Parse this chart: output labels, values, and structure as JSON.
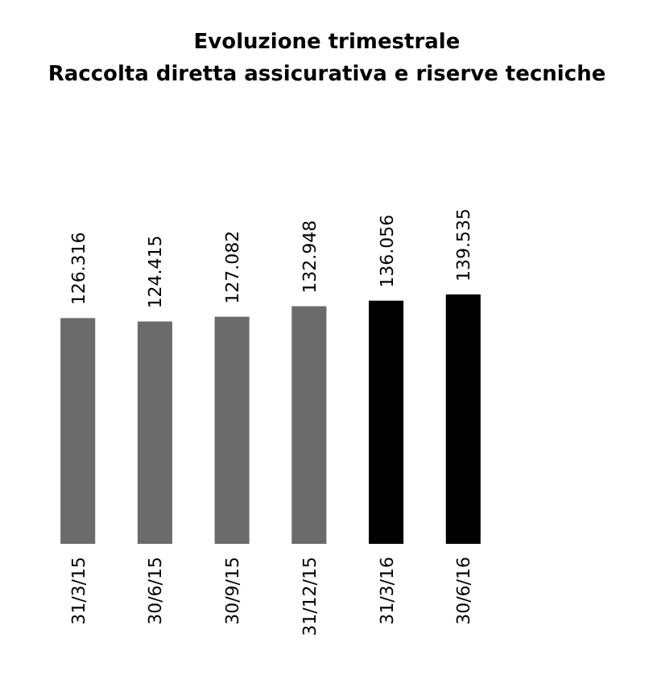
{
  "chart_data": {
    "type": "bar",
    "title": "Evoluzione trimestrale",
    "subtitle": "Raccolta diretta assicurativa e riserve tecniche",
    "categories": [
      "31/3/15",
      "30/6/15",
      "30/9/15",
      "31/12/15",
      "31/3/16",
      "30/6/16"
    ],
    "values": [
      126316,
      124415,
      127082,
      132948,
      136056,
      139535
    ],
    "value_labels": [
      "126.316",
      "124.415",
      "127.082",
      "132.948",
      "136.056",
      "139.535"
    ],
    "colors": [
      "#6b6b6b",
      "#6b6b6b",
      "#6b6b6b",
      "#6b6b6b",
      "#000000",
      "#000000"
    ]
  }
}
